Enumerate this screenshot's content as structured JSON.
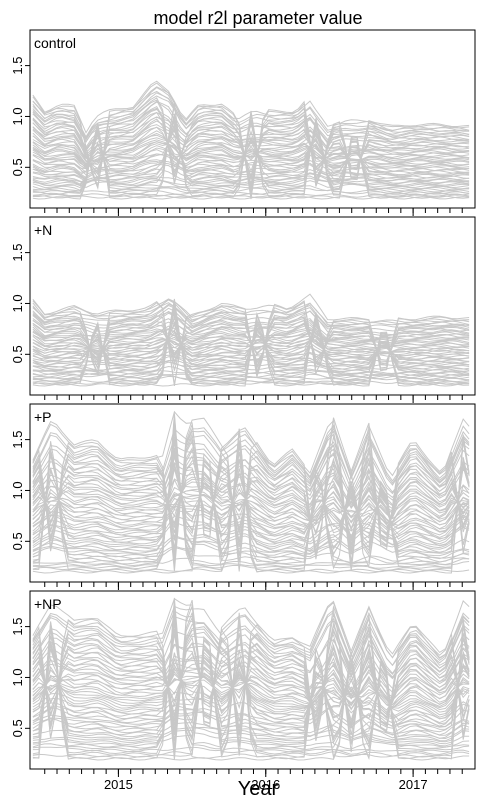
{
  "chart_data": {
    "type": "line",
    "title": "model r2l parameter value",
    "xlabel": "Year",
    "x_tick_labels": [
      "2015",
      "2016",
      "2017"
    ],
    "x_tick_values": [
      2015.0,
      2016.0,
      2017.0
    ],
    "xlim": [
      2014.4,
      2017.42
    ],
    "y_tick_labels": [
      "0.5",
      "1.0",
      "1.5"
    ],
    "y_tick_values": [
      0.5,
      1.0,
      1.5
    ],
    "line_color": "#c8c8c8",
    "grid": false,
    "n_series_per_panel": 60,
    "panels": [
      {
        "label": "control",
        "ylim": [
          0.1,
          1.85
        ],
        "envelope_x": [
          2014.42,
          2014.5,
          2014.6,
          2014.7,
          2014.78,
          2014.84,
          2014.92,
          2015.1,
          2015.25,
          2015.35,
          2015.45,
          2015.55,
          2015.7,
          2015.8,
          2015.92,
          2016.05,
          2016.2,
          2016.3,
          2016.42,
          2016.55,
          2016.7,
          2016.85,
          2017.0,
          2017.2,
          2017.4
        ],
        "envelope_max": [
          1.2,
          1.05,
          1.12,
          1.1,
          0.85,
          1.0,
          1.05,
          1.1,
          1.35,
          1.25,
          0.95,
          1.12,
          1.12,
          1.0,
          1.08,
          1.05,
          1.05,
          1.2,
          0.92,
          0.97,
          0.97,
          0.9,
          0.92,
          0.92,
          0.9
        ],
        "envelope_min": [
          0.2,
          0.2,
          0.2,
          0.2,
          0.2,
          0.2,
          0.2,
          0.2,
          0.2,
          0.2,
          0.2,
          0.2,
          0.2,
          0.2,
          0.2,
          0.2,
          0.2,
          0.2,
          0.2,
          0.2,
          0.2,
          0.2,
          0.2,
          0.2,
          0.2
        ],
        "crossing_points": [
          2014.85,
          2015.38,
          2015.9,
          2016.35,
          2016.6
        ]
      },
      {
        "label": "+N",
        "ylim": [
          0.1,
          1.85
        ],
        "envelope_x": [
          2014.42,
          2014.5,
          2014.7,
          2014.85,
          2015.0,
          2015.2,
          2015.35,
          2015.5,
          2015.7,
          2015.85,
          2016.0,
          2016.15,
          2016.3,
          2016.42,
          2016.6,
          2016.8,
          2017.0,
          2017.2,
          2017.4
        ],
        "envelope_max": [
          1.03,
          0.9,
          0.97,
          0.9,
          0.93,
          0.95,
          1.1,
          0.88,
          1.0,
          0.95,
          1.0,
          0.95,
          1.08,
          0.85,
          0.85,
          0.85,
          0.85,
          0.87,
          0.85
        ],
        "envelope_min": [
          0.2,
          0.2,
          0.2,
          0.2,
          0.2,
          0.2,
          0.2,
          0.2,
          0.2,
          0.2,
          0.2,
          0.2,
          0.2,
          0.2,
          0.2,
          0.2,
          0.2,
          0.2,
          0.2
        ],
        "crossing_points": [
          2014.85,
          2015.38,
          2015.95,
          2016.35,
          2016.8
        ]
      },
      {
        "label": "+P",
        "ylim": [
          0.1,
          1.85
        ],
        "envelope_x": [
          2014.42,
          2014.55,
          2014.7,
          2014.85,
          2015.0,
          2015.3,
          2015.38,
          2015.45,
          2015.58,
          2015.7,
          2015.85,
          2016.05,
          2016.18,
          2016.3,
          2016.45,
          2016.58,
          2016.7,
          2016.85,
          2017.0,
          2017.2,
          2017.35,
          2017.42
        ],
        "envelope_max": [
          1.3,
          1.7,
          1.45,
          1.5,
          1.3,
          1.35,
          1.8,
          1.7,
          1.7,
          1.45,
          1.65,
          1.25,
          1.4,
          1.2,
          1.75,
          1.2,
          1.65,
          1.15,
          1.5,
          1.15,
          1.75,
          1.5
        ],
        "envelope_min": [
          0.2,
          0.2,
          0.2,
          0.2,
          0.2,
          0.2,
          0.2,
          0.2,
          0.2,
          0.2,
          0.2,
          0.2,
          0.2,
          0.2,
          0.2,
          0.2,
          0.2,
          0.2,
          0.2,
          0.2,
          0.2,
          0.2
        ],
        "crossing_points": [
          2014.55,
          2015.38,
          2015.6,
          2015.82,
          2016.35,
          2016.58,
          2016.8,
          2017.35
        ]
      },
      {
        "label": "+NP",
        "ylim": [
          0.1,
          1.85
        ],
        "envelope_x": [
          2014.42,
          2014.55,
          2014.7,
          2014.85,
          2015.0,
          2015.3,
          2015.38,
          2015.45,
          2015.58,
          2015.7,
          2015.85,
          2016.05,
          2016.18,
          2016.3,
          2016.45,
          2016.58,
          2016.7,
          2016.85,
          2017.0,
          2017.2,
          2017.35,
          2017.42
        ],
        "envelope_max": [
          1.4,
          1.75,
          1.55,
          1.6,
          1.4,
          1.45,
          1.8,
          1.75,
          1.75,
          1.5,
          1.7,
          1.35,
          1.4,
          1.3,
          1.8,
          1.25,
          1.7,
          1.2,
          1.55,
          1.2,
          1.8,
          1.55
        ],
        "envelope_min": [
          0.2,
          0.2,
          0.2,
          0.2,
          0.2,
          0.2,
          0.2,
          0.2,
          0.2,
          0.2,
          0.2,
          0.2,
          0.2,
          0.2,
          0.2,
          0.2,
          0.2,
          0.2,
          0.2,
          0.2,
          0.2,
          0.2
        ],
        "crossing_points": [
          2014.55,
          2015.38,
          2015.6,
          2015.82,
          2016.35,
          2016.58,
          2016.8,
          2017.35
        ]
      }
    ]
  }
}
